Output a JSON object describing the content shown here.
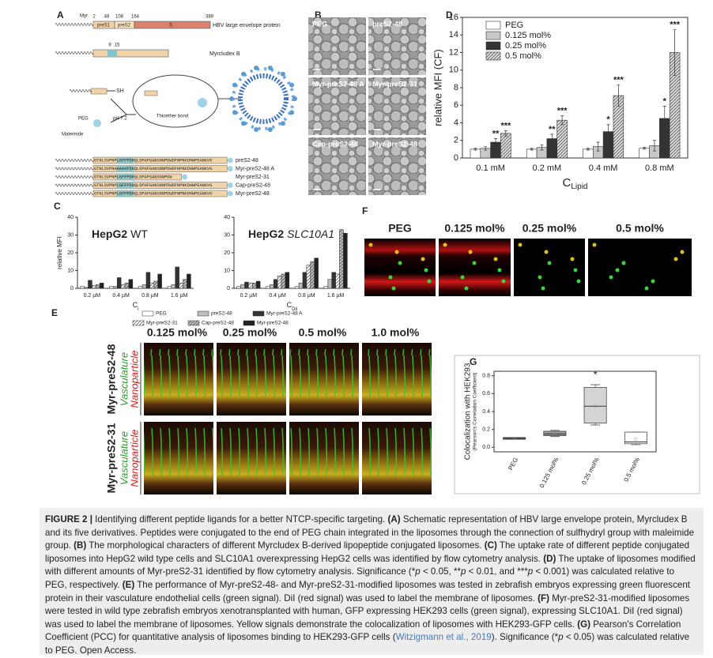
{
  "figure": {
    "letters": [
      "A",
      "B",
      "C",
      "D",
      "E",
      "F",
      "G"
    ],
    "a": {
      "myr": "Myr",
      "residues": [
        2,
        48,
        108,
        164,
        389
      ],
      "domains": [
        "preS1",
        "preS2",
        "S"
      ],
      "protein": "HBV large envelope protein",
      "myrcludex": "Myrcludex B",
      "myrcludex_residues": [
        9,
        15
      ],
      "sh": "SH",
      "ph": "pH 7.2",
      "bond": "Thioether bond",
      "peg": "PEG",
      "maleimide": "Maleimide",
      "peptides": [
        {
          "name": "preS2-48",
          "sequence": "GTNLSVPNPLGFFPDHQLDPAFGANSNNPDWDFNPNKDHWPEANKVG"
        },
        {
          "name": "Myr-preS2-48 A",
          "sequence": "GTNLSVPNAAAAAPDHQLDPAFGANSNNPDWDFNPNKDHWPEANKVG"
        },
        {
          "name": "Myr-preS2-31",
          "sequence": "GTNLSVPNPLGFFPDHQLDPAFGANSNNPDW"
        },
        {
          "name": "Cap-preS2-48",
          "sequence": "GTNLSVPNPLGFFPDHQLDPAFGANSNNPDWDFNPNKDHWPEANKVG"
        },
        {
          "name": "Myr-preS2-48",
          "sequence": "GTNLSVPNPLGFFPDHQLDPAFGANSNNPDWDFNPNKDHWPEANKVG"
        }
      ]
    },
    "b": {
      "labels": [
        "PEG",
        "preS2-48",
        "Myr-preS2-48 A",
        "Myr-preS2-31",
        "Cap-preS2-48",
        "Myr-preS2-48"
      ]
    },
    "e": {
      "columns": [
        "0.125 mol%",
        "0.25 mol%",
        "0.5 mol%",
        "1.0 mol%"
      ],
      "rows": [
        "Myr-preS2-48",
        "Myr-preS2-31"
      ],
      "vasculature": "Vasculature",
      "nanoparticle": "Nanoparticle"
    },
    "f": {
      "columns": [
        "PEG",
        "0.125 mol%",
        "0.25 mol%",
        "0.5 mol%"
      ]
    }
  },
  "chart_data": [
    {
      "type": "bar",
      "categories": [
        "0.1 mM",
        "0.2 mM",
        "0.4 mM",
        "0.8 mM"
      ],
      "series": [
        {
          "name": "PEG",
          "color": "#ffffff",
          "values": [
            1,
            1,
            1,
            1.1
          ],
          "errors": [
            0.1,
            0.1,
            0.1,
            0.1
          ]
        },
        {
          "name": "0.125 mol%",
          "color": "#c8c8c8",
          "values": [
            1.1,
            1.2,
            1.3,
            1.4
          ],
          "errors": [
            0.2,
            0.3,
            0.5,
            0.6
          ]
        },
        {
          "name": "0.25 mol%",
          "color": "#333333",
          "values": [
            1.8,
            2.2,
            3.0,
            4.5
          ],
          "errors": [
            0.4,
            0.5,
            0.8,
            1.4
          ],
          "significance": [
            "**",
            "**",
            "*",
            "*"
          ]
        },
        {
          "name": "0.5 mol%",
          "color": "#d9d9d9",
          "hatch": true,
          "values": [
            2.8,
            4.3,
            7.1,
            12
          ],
          "errors": [
            0.3,
            0.5,
            1.2,
            2.6
          ],
          "significance": [
            "***",
            "***",
            "***",
            "***"
          ]
        }
      ],
      "ylim": [
        0,
        16
      ],
      "yticks": [
        0,
        2,
        4,
        6,
        8,
        10,
        12,
        14,
        16
      ],
      "y_label": "relative MFI (CF)",
      "x_label": "C",
      "x_label_sub": "Lipid",
      "legend": "upper left"
    },
    {
      "type": "bar",
      "title": "HepG2",
      "title_suffix": "WT",
      "categories": [
        "0.2 µM",
        "0.4 µM",
        "0.8 µM",
        "1.6 µM"
      ],
      "series": [
        {
          "name": "PEG",
          "color": "#ffffff",
          "values": [
            1,
            1,
            1,
            1
          ]
        },
        {
          "name": "preS2-48",
          "color": "#bdbdbd",
          "values": [
            0.5,
            1,
            2,
            2
          ]
        },
        {
          "name": "Myr-preS2-48 A",
          "color": "#333333",
          "values": [
            4.5,
            6,
            9,
            12
          ]
        },
        {
          "name": "Myr-preS2-31",
          "color": "#ffffff",
          "hatch": true,
          "values": [
            1.5,
            2,
            3,
            3
          ]
        },
        {
          "name": "Cap-preS2-48",
          "color": "#bdbdbd",
          "hatch": true,
          "values": [
            2,
            3,
            4,
            5
          ]
        },
        {
          "name": "Myr-preS2-48",
          "color": "#222222",
          "values": [
            3,
            5,
            8,
            8
          ]
        }
      ],
      "ylim": [
        0,
        40
      ],
      "yticks": [
        0,
        10,
        20,
        30,
        40
      ],
      "y_label": "relative MFI",
      "x_label": "C",
      "x_label_sub": "l",
      "legend": "below"
    },
    {
      "type": "bar",
      "title": "HepG2",
      "title_suffix": "SLC10A1",
      "categories": [
        "0.2 µM",
        "0.4 µM",
        "0.8 µM",
        "1.6 µM"
      ],
      "series": [
        {
          "name": "PEG",
          "color": "#ffffff",
          "values": [
            1,
            1,
            1,
            1
          ]
        },
        {
          "name": "preS2-48",
          "color": "#bdbdbd",
          "values": [
            2,
            2,
            3,
            5
          ]
        },
        {
          "name": "Myr-preS2-48 A",
          "color": "#333333",
          "values": [
            3.5,
            5,
            9,
            9
          ]
        },
        {
          "name": "Myr-preS2-31",
          "color": "#ffffff",
          "hatch": true,
          "values": [
            3,
            7,
            13,
            8
          ]
        },
        {
          "name": "Cap-preS2-48",
          "color": "#bdbdbd",
          "hatch": true,
          "values": [
            3,
            8,
            15,
            33
          ]
        },
        {
          "name": "Myr-preS2-48",
          "color": "#222222",
          "values": [
            4,
            9,
            17,
            31
          ]
        }
      ],
      "ylim": [
        0,
        40
      ],
      "yticks": [
        0,
        10,
        20,
        30,
        40
      ],
      "x_label": "C",
      "x_label_sub": "DiI",
      "legend": false
    },
    {
      "type": "box",
      "categories": [
        "PEG",
        "0.125 mol%",
        "0.25 mol%",
        "0.5 mol%"
      ],
      "boxes": [
        {
          "min": 0.09,
          "q1": 0.09,
          "median": 0.1,
          "q3": 0.11,
          "max": 0.11,
          "mean": 0.1
        },
        {
          "min": 0.12,
          "q1": 0.13,
          "median": 0.15,
          "q3": 0.18,
          "max": 0.19,
          "mean": 0.15
        },
        {
          "min": 0.25,
          "q1": 0.27,
          "median": 0.46,
          "q3": 0.67,
          "max": 0.7,
          "mean": 0.46
        },
        {
          "min": 0.03,
          "q1": 0.04,
          "median": 0.06,
          "q3": 0.17,
          "max": 0.17,
          "mean": 0.09
        }
      ],
      "colors": [
        "#7a7a7a",
        "#9a9a9a",
        "#d4d4d4",
        "#ffffff"
      ],
      "significance": [
        null,
        null,
        "*",
        null
      ],
      "ylim": [
        -0.05,
        0.85
      ],
      "yticks": [
        {
          "value": 0,
          "label": "0.0"
        },
        {
          "value": 0.2,
          "label": "0.2"
        },
        {
          "value": 0.4,
          "label": "0.4"
        },
        {
          "value": 0.6,
          "label": "0.6"
        },
        {
          "value": 0.8,
          "label": "0.8"
        }
      ],
      "y_label": "Colocalization with HEK293",
      "y_label_sub": "(Pearson's Correlation Coefficient)"
    }
  ],
  "caption": [
    {
      "t": "FIGURE 2 |",
      "s": "b"
    },
    {
      "t": " Identifying different peptide ligands for a better NTCP-specific targeting. ",
      "s": "n"
    },
    {
      "t": "(A)",
      "s": "b"
    },
    {
      "t": " Schematic representation of HBV large envelope protein, Myrcludex B and its five derivatives. Peptides were conjugated to the end of PEG chain integrated in the liposomes through the connection of sulfhydryl group with maleimide group. ",
      "s": "n"
    },
    {
      "t": "(B)",
      "s": "b"
    },
    {
      "t": " The morphological characters of different Myrcludex B-derived lipopeptide conjugated liposomes. ",
      "s": "n"
    },
    {
      "t": "(C)",
      "s": "b"
    },
    {
      "t": " The uptake rate of different peptide conjugated liposomes into HepG2 wild type cells and SLC10A1 overexpressing HepG2 cells was identified by flow cytometry analysis. ",
      "s": "n"
    },
    {
      "t": "(D)",
      "s": "b"
    },
    {
      "t": " The uptake of liposomes modified with different amounts of Myr-preS2-31 identified by flow cytometry analysis. Significance (*",
      "s": "n"
    },
    {
      "t": "p",
      "s": "i"
    },
    {
      "t": " < 0.05, **",
      "s": "n"
    },
    {
      "t": "p",
      "s": "i"
    },
    {
      "t": " < 0.01, and ***",
      "s": "n"
    },
    {
      "t": "p",
      "s": "i"
    },
    {
      "t": " < 0.001) was calculated relative to PEG, respectively. ",
      "s": "n"
    },
    {
      "t": "(E)",
      "s": "b"
    },
    {
      "t": " The performance of Myr-preS2-48- and Myr-preS2-31-modified liposomes was tested in zebrafish embryos expressing green fluorescent protein in their vasculature endothelial cells (green signal). DiI (red signal) was used to label the membrane of liposomes. ",
      "s": "n"
    },
    {
      "t": "(F)",
      "s": "b"
    },
    {
      "t": " Myr-preS2-31-modified liposomes were tested in wild type zebrafish embryos xenotransplanted with human, GFP expressing HEK293 cells (green signal), expressing SLC10A1. DiI (red signal) was used to label the membrane of liposomes. Yellow signals demonstrate the colocalization of liposomes with HEK293-GFP cells. ",
      "s": "n"
    },
    {
      "t": "(G)",
      "s": "b"
    },
    {
      "t": " Pearson's Correlation Coefficient (PCC) for quantitative analysis of liposomes binding to HEK293-GFP cells (",
      "s": "n"
    },
    {
      "t": "Witzigmann et al., 2019",
      "s": "l"
    },
    {
      "t": "). Significance (*",
      "s": "n"
    },
    {
      "t": "p",
      "s": "i"
    },
    {
      "t": " < 0.05) was calculated relative to PEG. Open Access.",
      "s": "n"
    }
  ]
}
